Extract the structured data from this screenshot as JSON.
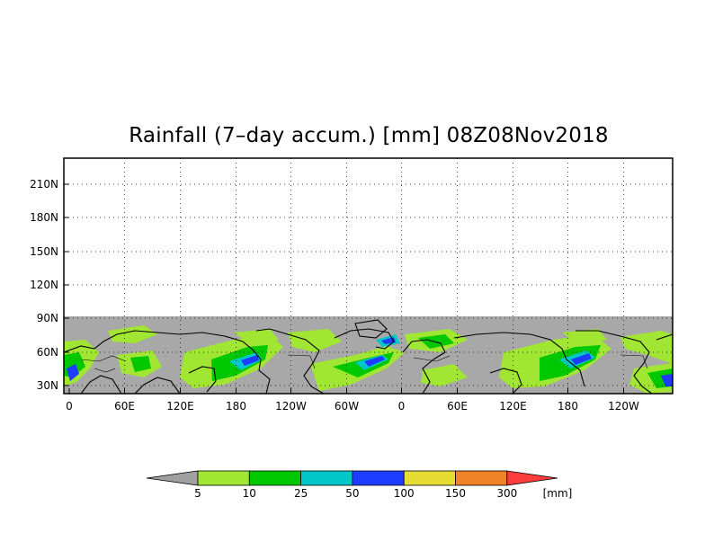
{
  "title": "Rainfall (7–day accum.) [mm] 08Z08Nov2018",
  "map": {
    "lat_labels": [
      "210N",
      "180N",
      "150N",
      "120N",
      "90N",
      "60N",
      "30N"
    ],
    "lon_labels": [
      "0",
      "60E",
      "120E",
      "180",
      "120W",
      "60W",
      "0",
      "60E",
      "120E",
      "180",
      "120W"
    ],
    "grid": "dotted",
    "no_data_color": "#a8a8a8",
    "coastline_color": "#000000"
  },
  "colorbar": {
    "thresholds": [
      "5",
      "10",
      "25",
      "50",
      "100",
      "150",
      "300"
    ],
    "unit": "[mm]",
    "colors": [
      "#a0a0a0",
      "#a0e632",
      "#00c800",
      "#00c8c8",
      "#1e3cff",
      "#e6dc32",
      "#f08228",
      "#fa3c3c"
    ]
  }
}
